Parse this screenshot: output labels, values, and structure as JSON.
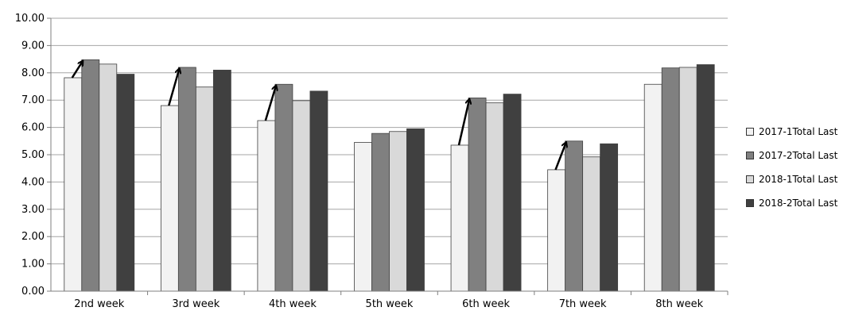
{
  "chart_data": {
    "type": "bar",
    "categories": [
      "2nd week",
      "3rd week",
      "4th week",
      "5th week",
      "6th week",
      "7th week",
      "8th week"
    ],
    "series": [
      {
        "name": "2017-1Total Last",
        "color": "#f2f2f2",
        "values": [
          7.82,
          6.8,
          6.25,
          5.45,
          5.35,
          4.45,
          7.58
        ]
      },
      {
        "name": "2017-2Total Last",
        "color": "#808080",
        "values": [
          8.48,
          8.2,
          7.58,
          5.78,
          7.08,
          5.5,
          8.18
        ]
      },
      {
        "name": "2018-1Total Last",
        "color": "#d9d9d9",
        "values": [
          8.32,
          7.48,
          6.98,
          5.85,
          6.9,
          4.92,
          8.2
        ]
      },
      {
        "name": "2018-2Total Last",
        "color": "#404040",
        "values": [
          7.95,
          8.1,
          7.33,
          5.95,
          7.22,
          5.4,
          8.3
        ]
      }
    ],
    "ylim": [
      0,
      10
    ],
    "yticks": [
      "0.00",
      "1.00",
      "2.00",
      "3.00",
      "4.00",
      "5.00",
      "6.00",
      "7.00",
      "8.00",
      "9.00",
      "10.00"
    ],
    "grid": true,
    "legend_position": "right",
    "annotations": [
      {
        "type": "arrow",
        "from_category": "2nd week",
        "from_series": "2017-1Total Last",
        "to_series": "2017-2Total Last"
      },
      {
        "type": "arrow",
        "from_category": "3rd week",
        "from_series": "2017-1Total Last",
        "to_series": "2017-2Total Last"
      },
      {
        "type": "arrow",
        "from_category": "4th week",
        "from_series": "2017-1Total Last",
        "to_series": "2017-2Total Last"
      },
      {
        "type": "arrow",
        "from_category": "6th week",
        "from_series": "2017-1Total Last",
        "to_series": "2017-2Total Last"
      },
      {
        "type": "arrow",
        "from_category": "7th week",
        "from_series": "2017-1Total Last",
        "to_series": "2017-2Total Last"
      }
    ]
  }
}
